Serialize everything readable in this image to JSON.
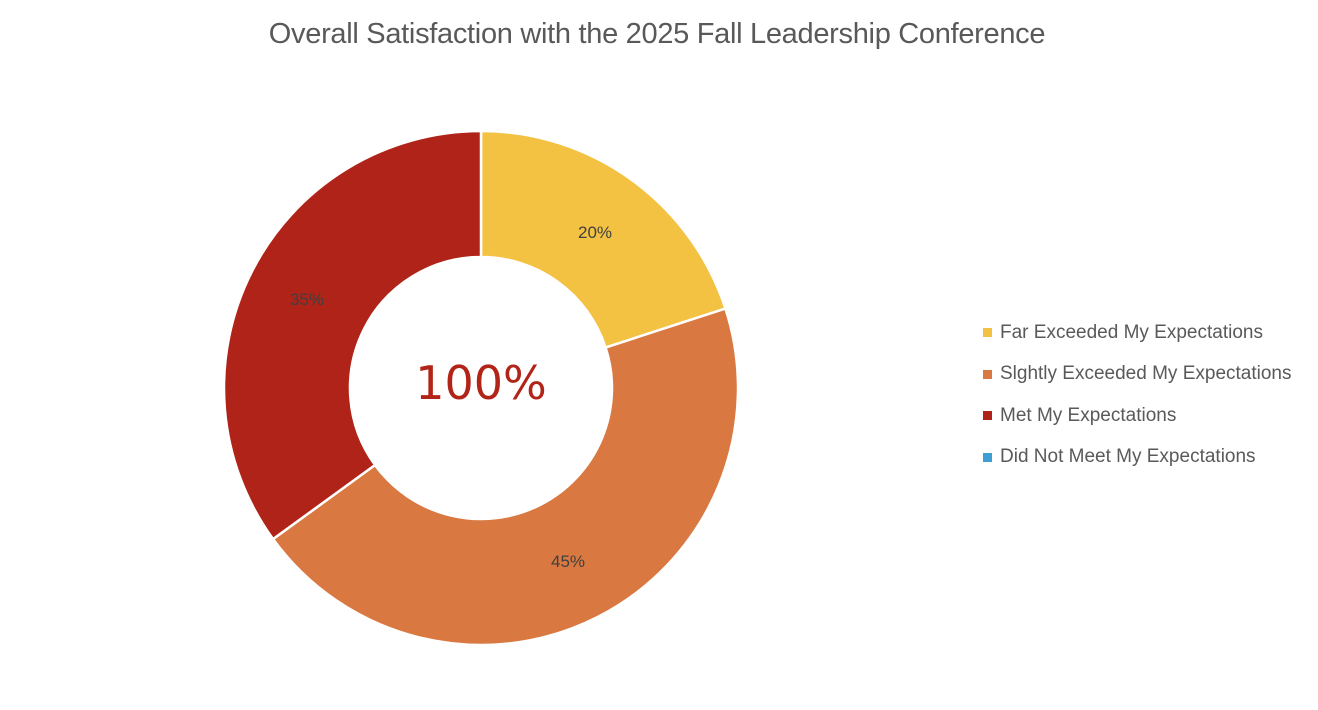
{
  "chart_data": {
    "type": "pie",
    "subtype": "donut",
    "title": "Overall Satisfaction with the 2025 Fall Leadership Conference",
    "center_label": "100%",
    "categories": [
      "Far Exceeded My Expectations",
      "Slghtly Exceeded My Expectations",
      "Met My Expectations",
      "Did Not Meet My Expectations"
    ],
    "values": [
      20,
      45,
      35,
      0
    ],
    "data_labels": [
      "20%",
      "45%",
      "35%",
      ""
    ],
    "colors": [
      "#f4c242",
      "#d97841",
      "#b02318",
      "#3f9fd4"
    ],
    "legend_position": "right",
    "unit": "%"
  },
  "title": "Overall Satisfaction with the 2025 Fall Leadership Conference",
  "center_label": "100%",
  "slice_labels": {
    "s0": "20%",
    "s1": "45%",
    "s2": "35%"
  },
  "legend": {
    "items": [
      {
        "label": "Far Exceeded My Expectations",
        "color": "#f4c242"
      },
      {
        "label": "Slghtly Exceeded My Expectations",
        "color": "#d97841"
      },
      {
        "label": "Met My Expectations",
        "color": "#b02318"
      },
      {
        "label": "Did Not Meet My Expectations",
        "color": "#3f9fd4"
      }
    ]
  }
}
